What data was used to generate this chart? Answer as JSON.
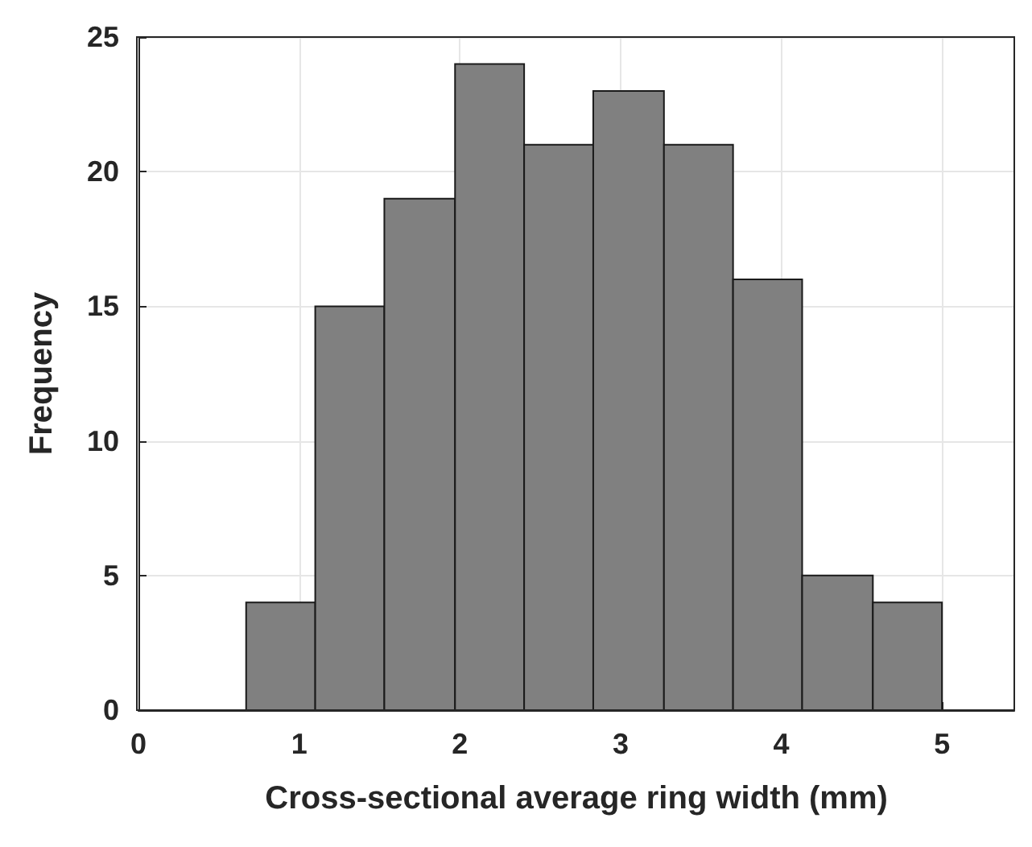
{
  "chart_data": {
    "type": "histogram",
    "xlabel": "Cross-sectional average ring width (mm)",
    "ylabel": "Frequency",
    "bins": [
      0.67,
      1.1,
      1.53,
      1.97,
      2.4,
      2.83,
      3.27,
      3.7,
      4.13,
      4.57,
      5.0
    ],
    "values": [
      4,
      15,
      19,
      24,
      21,
      23,
      21,
      16,
      5,
      4
    ],
    "color": "#808080",
    "xlim": [
      0,
      5.45
    ],
    "xticks": [
      0,
      1,
      2,
      3,
      4,
      5
    ],
    "ylim": [
      0,
      25
    ],
    "yticks": [
      0,
      5,
      10,
      15,
      20,
      25
    ],
    "grid": true
  }
}
